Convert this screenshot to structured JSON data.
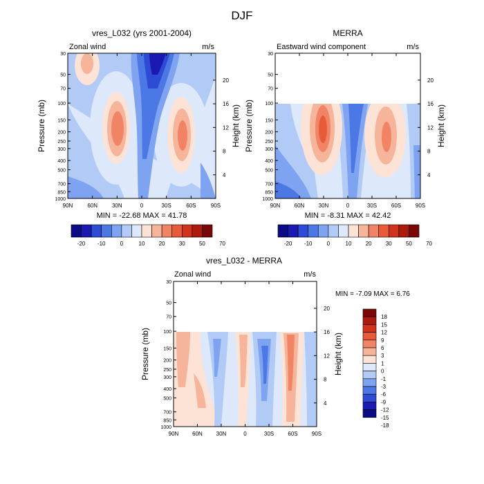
{
  "figure_title": "DJF",
  "colors": {
    "model": [
      "#0b0b86",
      "#1a1ab2",
      "#2e4bd6",
      "#4c78e6",
      "#7ea3f0",
      "#b2cbf6",
      "#dde8fb",
      "#fde3d5",
      "#f6b49a",
      "#f28466",
      "#e85a38",
      "#d2331c",
      "#ad1a0e",
      "#7a0807"
    ],
    "diff": [
      "#0b0b86",
      "#1a1ab2",
      "#2e4bd6",
      "#4c78e6",
      "#7ea3f0",
      "#b2cbf6",
      "#dde8fb",
      "#fde3d5",
      "#f6b49a",
      "#f28466",
      "#e85a38",
      "#d2331c",
      "#ad1a0e",
      "#7a0807"
    ]
  },
  "chart_data": [
    {
      "type": "heatmap",
      "title": "vres_L032 (yrs 2001-2004)",
      "left_label": "Zonal wind",
      "units": "m/s",
      "ylabel": "Pressure (mb)",
      "y2label": "Height (km)",
      "x_ticks": [
        "90N",
        "60N",
        "30N",
        "0",
        "30S",
        "60S",
        "90S"
      ],
      "p_ticks": [
        "30",
        "50",
        "70",
        "100",
        "150",
        "200",
        "250",
        "300",
        "400",
        "500",
        "700",
        "850",
        "1000"
      ],
      "p_values": [
        30,
        50,
        70,
        100,
        150,
        200,
        250,
        300,
        400,
        500,
        700,
        850,
        1000
      ],
      "z_ticks": [
        "20",
        "16",
        "12",
        "8",
        "4"
      ],
      "z_values": [
        20,
        16,
        12,
        8,
        4
      ],
      "p_top": 30,
      "min_max_text": "MIN = -22.68  MAX = 41.78",
      "min": -22.68,
      "max": 41.78,
      "colorbar_labels": [
        "-20",
        "-10",
        "0",
        "10",
        "20",
        "30",
        "50",
        "70"
      ]
    },
    {
      "type": "heatmap",
      "title": "MERRA",
      "left_label": "Eastward wind component",
      "units": "m/s",
      "ylabel": "Pressure (mb)",
      "y2label": "Height (km)",
      "x_ticks": [
        "90N",
        "60N",
        "30N",
        "0",
        "30S",
        "60S",
        "90S"
      ],
      "p_ticks": [
        "30",
        "50",
        "70",
        "100",
        "150",
        "200",
        "250",
        "300",
        "400",
        "500",
        "700",
        "850",
        "1000"
      ],
      "p_values": [
        30,
        50,
        70,
        100,
        150,
        200,
        250,
        300,
        400,
        500,
        700,
        850,
        1000
      ],
      "z_ticks": [
        "20",
        "16",
        "12",
        "8",
        "4"
      ],
      "z_values": [
        20,
        16,
        12,
        8,
        4
      ],
      "p_top": 100,
      "min_max_text": "MIN =  -8.31  MAX =  42.42",
      "min": -8.31,
      "max": 42.42,
      "colorbar_labels": [
        "-20",
        "-10",
        "0",
        "10",
        "20",
        "30",
        "50",
        "70"
      ]
    },
    {
      "type": "heatmap",
      "title": "vres_L032 - MERRA",
      "left_label": "Zonal wind",
      "units": "m/s",
      "ylabel": "Pressure (mb)",
      "y2label": "Height (km)",
      "x_ticks": [
        "90N",
        "60N",
        "30N",
        "0",
        "30S",
        "60S",
        "90S"
      ],
      "p_ticks": [
        "30",
        "50",
        "70",
        "100",
        "150",
        "200",
        "250",
        "300",
        "400",
        "500",
        "700",
        "850",
        "1000"
      ],
      "p_values": [
        30,
        50,
        70,
        100,
        150,
        200,
        250,
        300,
        400,
        500,
        700,
        850,
        1000
      ],
      "z_ticks": [
        "20",
        "16",
        "12",
        "8",
        "4"
      ],
      "z_values": [
        20,
        16,
        12,
        8,
        4
      ],
      "p_top": 100,
      "min_max_text": "MIN =  -7.09  MAX =   6.76",
      "min": -7.09,
      "max": 6.76,
      "colorbar_labels": [
        "18",
        "15",
        "12",
        "9",
        "6",
        "3",
        "1",
        "0",
        "-1",
        "-3",
        "-6",
        "-9",
        "-12",
        "-15",
        "-18"
      ]
    }
  ]
}
